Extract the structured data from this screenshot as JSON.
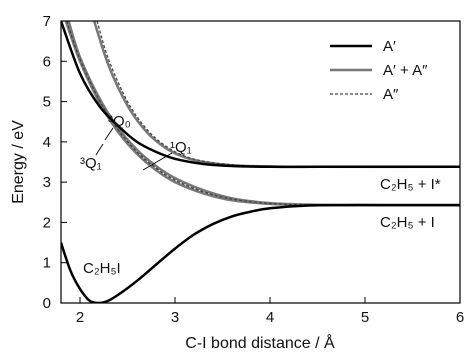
{
  "chart_data": {
    "type": "line",
    "xlabel": "C-I bond distance / Å",
    "ylabel": "Energy / eV",
    "xlim": [
      1.8,
      6
    ],
    "ylim": [
      0,
      7
    ],
    "x_ticks": [
      "2",
      "3",
      "4",
      "5",
      "6"
    ],
    "y_ticks": [
      "0",
      "1",
      "2",
      "3",
      "4",
      "5",
      "6",
      "7"
    ],
    "grid": false,
    "legend_position": "top-right",
    "legend": [
      {
        "label": "A′",
        "style": "solid",
        "color": "#000000"
      },
      {
        "label": "A′ + A″",
        "style": "solid",
        "color": "#777777"
      },
      {
        "label": "A″",
        "style": "dashed",
        "color": "#444444"
      }
    ],
    "annotations": {
      "ground_state": "C₂H₅I",
      "q0": "³Q₀",
      "q1": "³Q₁",
      "q1_singlet": "¹Q₁",
      "asymptote_lower": "C₂H₅ + I",
      "asymptote_upper": "C₂H₅ + I*"
    },
    "series": [
      {
        "symmetry": "A′",
        "style": "solid",
        "color": "#000000",
        "x": [
          1.8,
          1.9,
          2.0,
          2.1,
          2.2,
          2.3,
          2.4,
          2.6,
          2.8,
          3.0,
          3.2,
          3.4,
          3.6,
          3.8,
          4.0,
          4.4,
          4.8,
          5.2,
          6.0
        ],
        "y": [
          1.5,
          0.8,
          0.35,
          0.06,
          0.0,
          0.06,
          0.2,
          0.55,
          0.95,
          1.35,
          1.7,
          1.96,
          2.15,
          2.27,
          2.35,
          2.42,
          2.43,
          2.43,
          2.43
        ]
      },
      {
        "symmetry": "A′",
        "style": "solid",
        "color": "#000000",
        "x": [
          1.8,
          2.0,
          2.2,
          2.4,
          2.6,
          2.8,
          3.0,
          3.3,
          3.6,
          4.0,
          4.5,
          5.0,
          6.0
        ],
        "y": [
          7.0,
          5.7,
          4.9,
          4.4,
          4.0,
          3.75,
          3.58,
          3.45,
          3.4,
          3.38,
          3.38,
          3.38,
          3.38
        ]
      },
      {
        "symmetry": "A′ + A″",
        "style": "solid",
        "color": "#777777",
        "x": [
          1.85,
          2.0,
          2.2,
          2.4,
          2.6,
          2.8,
          3.0,
          3.3,
          3.6,
          4.0,
          4.5,
          5.0,
          6.0
        ],
        "y": [
          7.0,
          6.0,
          5.0,
          4.25,
          3.7,
          3.3,
          3.0,
          2.72,
          2.55,
          2.46,
          2.43,
          2.43,
          2.43
        ]
      },
      {
        "symmetry": "A′ + A″",
        "style": "solid",
        "color": "#777777",
        "x": [
          1.88,
          2.0,
          2.2,
          2.4,
          2.6,
          2.8,
          3.0,
          3.3,
          3.6,
          4.0,
          4.5,
          5.0,
          6.0
        ],
        "y": [
          7.0,
          6.1,
          5.1,
          4.35,
          3.8,
          3.4,
          3.1,
          2.8,
          2.6,
          2.48,
          2.44,
          2.43,
          2.43
        ]
      },
      {
        "symmetry": "A′ + A″",
        "style": "solid",
        "color": "#777777",
        "x": [
          2.15,
          2.3,
          2.5,
          2.7,
          2.9,
          3.1,
          3.3,
          3.6,
          4.0,
          4.5,
          6.0
        ],
        "y": [
          7.0,
          5.9,
          4.9,
          4.25,
          3.85,
          3.62,
          3.5,
          3.42,
          3.39,
          3.38,
          3.38
        ]
      },
      {
        "symmetry": "A″",
        "style": "dashed",
        "color": "#444444",
        "x": [
          1.86,
          2.0,
          2.2,
          2.4,
          2.6,
          2.8,
          3.0,
          3.3,
          3.6,
          4.0,
          4.5,
          5.0,
          6.0
        ],
        "y": [
          7.0,
          6.05,
          5.05,
          4.3,
          3.75,
          3.35,
          3.05,
          2.76,
          2.58,
          2.47,
          2.43,
          2.43,
          2.43
        ]
      },
      {
        "symmetry": "A″",
        "style": "dashed",
        "color": "#444444",
        "x": [
          2.18,
          2.3,
          2.5,
          2.7,
          2.9,
          3.1,
          3.3,
          3.6,
          4.0,
          4.5,
          6.0
        ],
        "y": [
          7.0,
          6.05,
          5.0,
          4.32,
          3.9,
          3.65,
          3.52,
          3.43,
          3.39,
          3.38,
          3.38
        ]
      }
    ]
  }
}
